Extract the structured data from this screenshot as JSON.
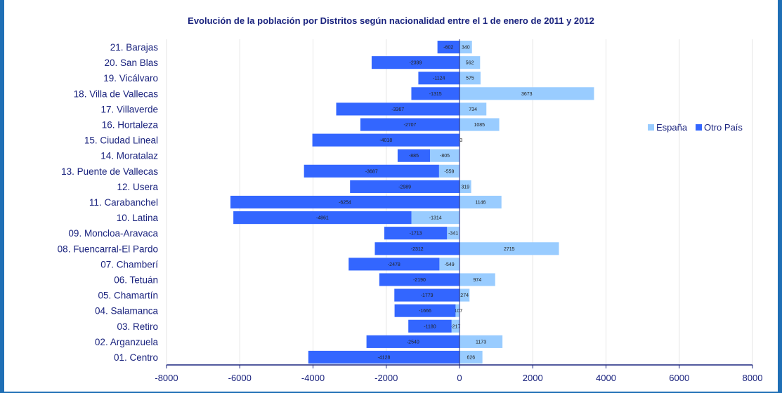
{
  "chart_data": {
    "type": "bar",
    "orientation": "horizontal",
    "stacked": true,
    "title": "Evolución de la población por Distritos según nacionalidad entre el 1 de enero de 2011 y 2012",
    "xlim": [
      -8000,
      8000
    ],
    "xticks": [
      "-8000",
      "-6000",
      "-4000",
      "-2000",
      "0",
      "2000",
      "4000",
      "6000",
      "8000"
    ],
    "grid": true,
    "legend_position": "right",
    "categories": [
      "21. Barajas",
      "20. San Blas",
      "19. Vicálvaro",
      "18. Villa de Vallecas",
      "17. Villaverde",
      "16. Hortaleza",
      "15. Ciudad Lineal",
      "14. Moratalaz",
      "13.  Puente de Vallecas",
      "12. Usera",
      "11. Carabanchel",
      "10. Latina",
      "09. Moncloa-Aravaca",
      "08. Fuencarral-El Pardo",
      "07. Chamberí",
      "06. Tetuán",
      "05. Chamartín",
      "04. Salamanca",
      "03. Retiro",
      "02. Arganzuela",
      "01. Centro"
    ],
    "series": [
      {
        "name": "España",
        "color": "#99ccff",
        "values": [
          340,
          562,
          575,
          3673,
          734,
          1085,
          13,
          -805,
          -559,
          319,
          1146,
          -1314,
          -341,
          2715,
          -549,
          974,
          274,
          -107,
          -217,
          1173,
          626
        ]
      },
      {
        "name": "Otro País",
        "color": "#3366ff",
        "values": [
          -602,
          -2399,
          -1124,
          -1315,
          -3367,
          -2707,
          -4018,
          -885,
          -3687,
          -2989,
          -6254,
          -4861,
          -1713,
          -2312,
          -2478,
          -2190,
          -1779,
          -1666,
          -1180,
          -2540,
          -4128
        ]
      }
    ]
  }
}
